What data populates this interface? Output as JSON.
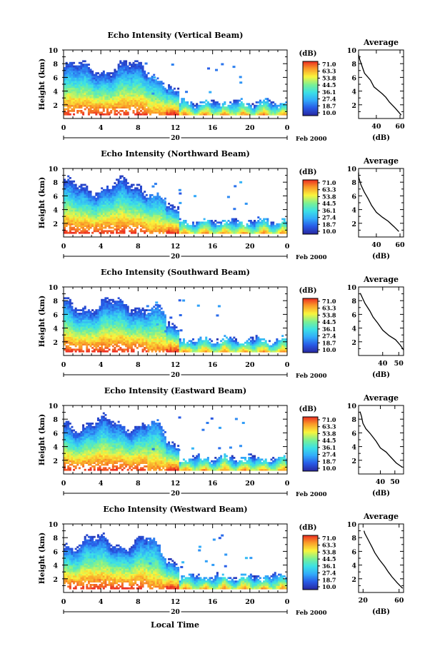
{
  "chart_data": {
    "type": "heatmap",
    "x_label": "Local Time",
    "x_ticks": [
      "0",
      "4",
      "8",
      "12",
      "16",
      "20",
      "0"
    ],
    "x_range_hours": [
      0,
      24
    ],
    "date_label": "20",
    "month_label": "Feb 2000",
    "y_label": "Height (km)",
    "y_ticks": [
      "2",
      "4",
      "6",
      "8",
      "10"
    ],
    "y_range_km": [
      0,
      10
    ],
    "colorbar": {
      "unit": "(dB)",
      "labels": [
        "71.0",
        "63.3",
        "53.8",
        "44.5",
        "36.1",
        "27.4",
        "18.7",
        "10.0"
      ],
      "range": [
        10.0,
        71.0
      ]
    },
    "panels": [
      {
        "title": "Echo Intensity (Vertical Beam)",
        "avg": {
          "title": "Average",
          "xlabel": "(dB)",
          "xticks": [
            "40",
            "60"
          ],
          "xlim": [
            25,
            63
          ],
          "profile": [
            [
              61,
              0.5
            ],
            [
              56,
              1.5
            ],
            [
              51,
              2.4
            ],
            [
              48,
              3.1
            ],
            [
              45,
              3.6
            ],
            [
              38,
              4.6
            ],
            [
              35,
              5.6
            ],
            [
              30,
              6.6
            ],
            [
              28,
              7.6
            ],
            [
              26,
              8.6
            ],
            [
              25,
              9.3
            ]
          ]
        }
      },
      {
        "title": "Echo Intensity (Northward Beam)",
        "avg": {
          "title": "Average",
          "xlabel": "(dB)",
          "xticks": [
            "40",
            "60"
          ],
          "xlim": [
            25,
            63
          ],
          "profile": [
            [
              59,
              0.8
            ],
            [
              55,
              1.5
            ],
            [
              50,
              2.3
            ],
            [
              45,
              2.9
            ],
            [
              40,
              3.6
            ],
            [
              36,
              4.6
            ],
            [
              33,
              5.6
            ],
            [
              30,
              6.5
            ],
            [
              27,
              7.6
            ],
            [
              25,
              8.8
            ],
            [
              24,
              9.4
            ]
          ]
        }
      },
      {
        "title": "Echo Intensity (Southward Beam)",
        "avg": {
          "title": "Average",
          "xlabel": "(dB)",
          "xticks": [
            "40",
            "50"
          ],
          "xlim": [
            25,
            53
          ],
          "profile": [
            [
              53,
              0.8
            ],
            [
              51,
              1.5
            ],
            [
              48,
              2.3
            ],
            [
              44,
              2.9
            ],
            [
              40,
              3.7
            ],
            [
              37,
              4.7
            ],
            [
              34,
              5.6
            ],
            [
              32,
              6.5
            ],
            [
              29,
              7.6
            ],
            [
              27,
              8.6
            ],
            [
              26,
              9.1
            ]
          ]
        }
      },
      {
        "title": "Echo Intensity (Eastward Beam)",
        "avg": {
          "title": "Average",
          "xlabel": "(dB)",
          "xticks": [
            "40",
            "50"
          ],
          "xlim": [
            25,
            56
          ],
          "profile": [
            [
              55,
              1.0
            ],
            [
              51,
              1.6
            ],
            [
              47,
              2.5
            ],
            [
              44,
              3.2
            ],
            [
              40,
              3.8
            ],
            [
              37,
              4.8
            ],
            [
              33,
              5.9
            ],
            [
              30,
              6.6
            ],
            [
              28,
              7.4
            ],
            [
              27,
              8.4
            ],
            [
              26,
              9.1
            ]
          ]
        }
      },
      {
        "title": "Echo Intensity (Westward Beam)",
        "avg": {
          "title": "Average",
          "xlabel": "(dB)",
          "xticks": [
            "20",
            "60"
          ],
          "xlim": [
            15,
            65
          ],
          "profile": [
            [
              64,
              0.6
            ],
            [
              58,
              1.4
            ],
            [
              52,
              2.3
            ],
            [
              48,
              3.0
            ],
            [
              44,
              3.8
            ],
            [
              38,
              4.8
            ],
            [
              33,
              5.8
            ],
            [
              30,
              6.6
            ],
            [
              26,
              7.6
            ],
            [
              22,
              8.6
            ],
            [
              21,
              9.0
            ]
          ]
        }
      }
    ],
    "footer_label": "Local Time"
  }
}
